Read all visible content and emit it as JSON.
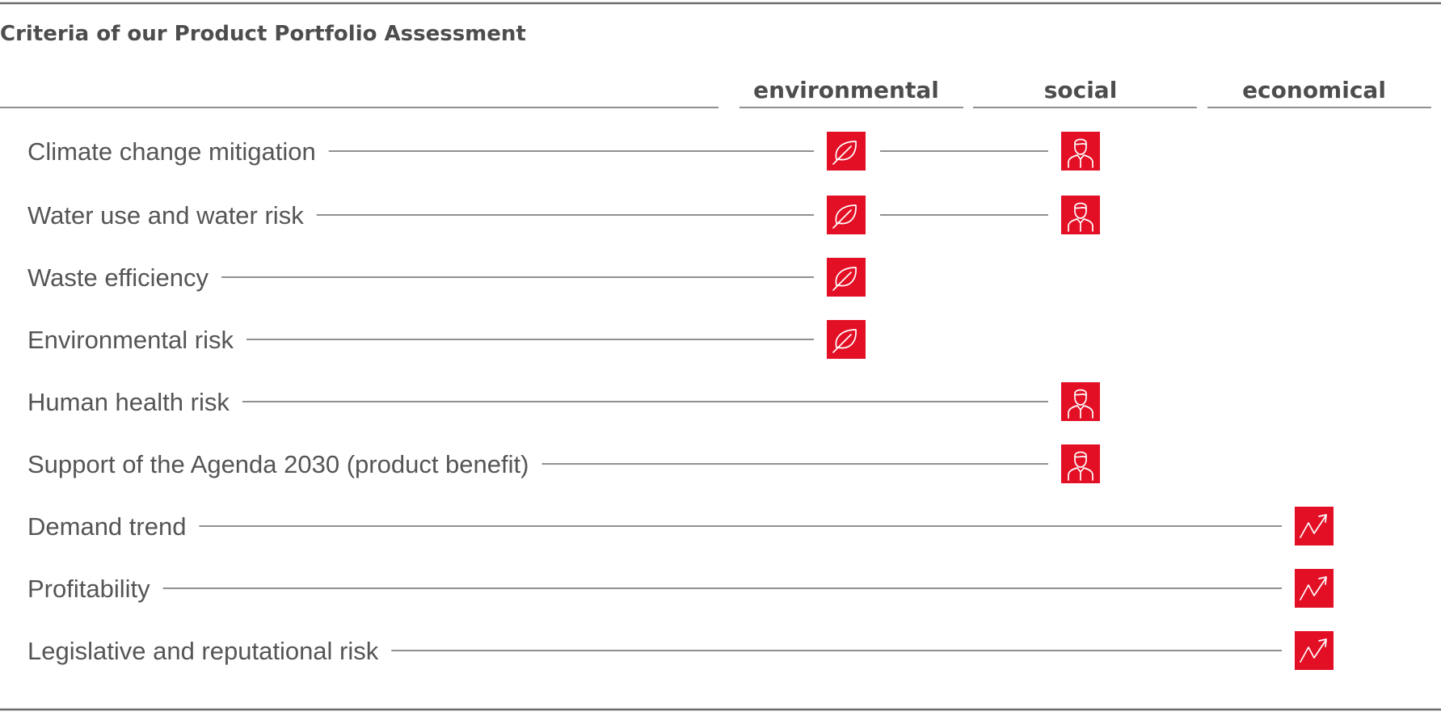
{
  "title": "Criteria of our Product Portfolio Assessment",
  "columns": [
    {
      "key": "environmental",
      "label": "environmental",
      "icon": "leaf-icon"
    },
    {
      "key": "social",
      "label": "social",
      "icon": "person-icon"
    },
    {
      "key": "economical",
      "label": "economical",
      "icon": "trend-up-icon"
    }
  ],
  "accent_color": "#e30f25",
  "rows": [
    {
      "label": "Climate change mitigation",
      "marks": [
        "environmental",
        "social"
      ]
    },
    {
      "label": "Water use and water risk",
      "marks": [
        "environmental",
        "social"
      ]
    },
    {
      "label": "Waste efficiency",
      "marks": [
        "environmental"
      ]
    },
    {
      "label": "Environmental risk",
      "marks": [
        "environmental"
      ]
    },
    {
      "label": "Human health risk",
      "marks": [
        "social"
      ]
    },
    {
      "label": "Support of the Agenda 2030 (product benefit)",
      "marks": [
        "social"
      ]
    },
    {
      "label": "Demand trend",
      "marks": [
        "economical"
      ]
    },
    {
      "label": "Profitability",
      "marks": [
        "economical"
      ]
    },
    {
      "label": "Legislative and reputational risk",
      "marks": [
        "economical"
      ]
    }
  ]
}
